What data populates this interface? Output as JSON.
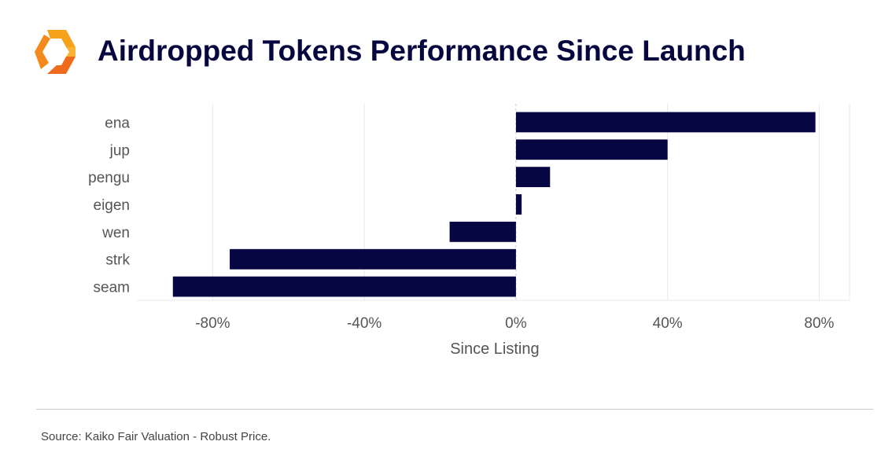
{
  "header": {
    "title": "Airdropped Tokens Performance Since Launch",
    "logo_colors": [
      "#f7a21b",
      "#f06a1d"
    ]
  },
  "footer": {
    "source": "Source: Kaiko Fair Valuation - Robust Price."
  },
  "colors": {
    "bar": "#060642",
    "title": "#07073f",
    "grid": "#e9e9e9",
    "zero_line": "#c8c8c8",
    "text": "#555555"
  },
  "chart_data": {
    "type": "bar",
    "orientation": "horizontal",
    "categories": [
      "ena",
      "jup",
      "pengu",
      "eigen",
      "wen",
      "strk",
      "seam"
    ],
    "values": [
      79,
      40,
      9,
      1.5,
      -17.5,
      -75.5,
      -90.5
    ],
    "unit": "%",
    "xlabel": "Since Listing",
    "ylabel": "",
    "xlim": [
      -100,
      88
    ],
    "xticks": [
      -80,
      -40,
      0,
      40,
      80
    ],
    "xtick_labels": [
      "-80%",
      "-40%",
      "0%",
      "40%",
      "80%"
    ],
    "grid": true,
    "legend": "none"
  }
}
